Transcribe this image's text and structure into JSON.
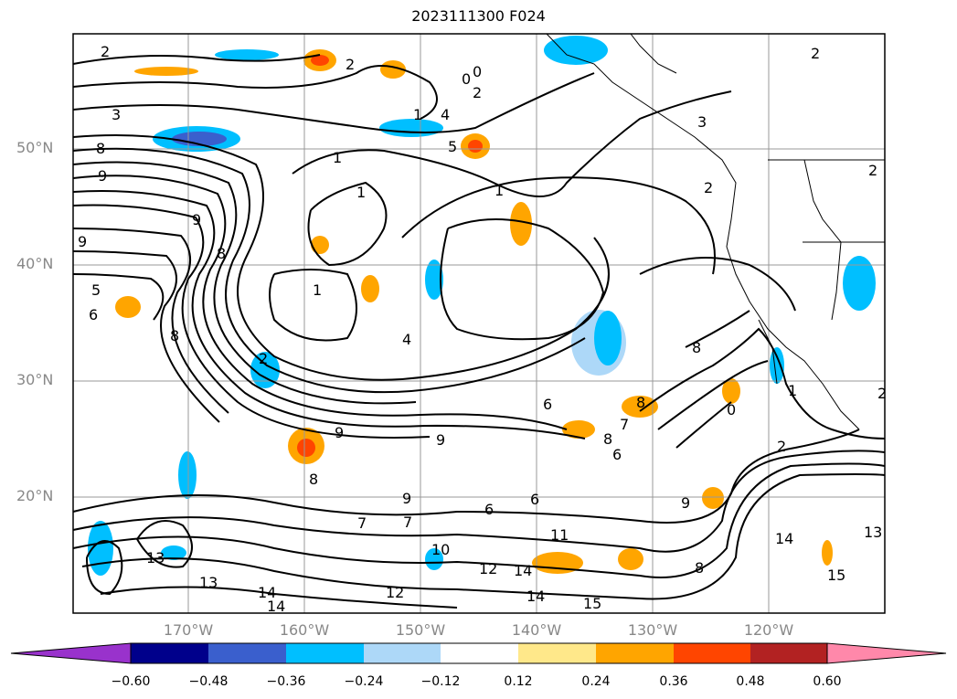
{
  "title": "2023111300 F024",
  "lat_labels": [
    "50°N",
    "40°N",
    "30°N",
    "20°N"
  ],
  "lon_labels": [
    "170°W",
    "160°W",
    "150°W",
    "140°W",
    "130°W",
    "120°W"
  ],
  "colorbar": {
    "tick_labels": [
      "−0.60",
      "−0.48",
      "−0.36",
      "−0.24",
      "−0.12",
      "0.12",
      "0.24",
      "0.36",
      "0.48",
      "0.60"
    ],
    "colors": [
      "#9932CC",
      "#00008B",
      "#3A5FCD",
      "#00BFFF",
      "#ADD8F8",
      "#FFFFFF",
      "#FFE88A",
      "#FFA500",
      "#FF4500",
      "#B22222",
      "#FF88AA"
    ]
  },
  "contour_labels": [
    "2",
    "2",
    "2",
    "3",
    "3",
    "1",
    "4",
    "5",
    "0",
    "0",
    "2",
    "1",
    "2",
    "8",
    "9",
    "9",
    "9",
    "1",
    "1",
    "8",
    "5",
    "6",
    "8",
    "4",
    "1",
    "2",
    "9",
    "9",
    "8",
    "6",
    "6",
    "2",
    "9",
    "7",
    "7",
    "8",
    "8",
    "0",
    "2",
    "1",
    "7",
    "8",
    "13",
    "13",
    "14",
    "14",
    "12",
    "10",
    "11",
    "12",
    "14",
    "14",
    "15",
    "15",
    "13",
    "14",
    "6",
    "6",
    "8",
    "9",
    "2"
  ],
  "colors": {
    "contour": "#000000",
    "grid": "#999999",
    "coast": "#000000"
  }
}
